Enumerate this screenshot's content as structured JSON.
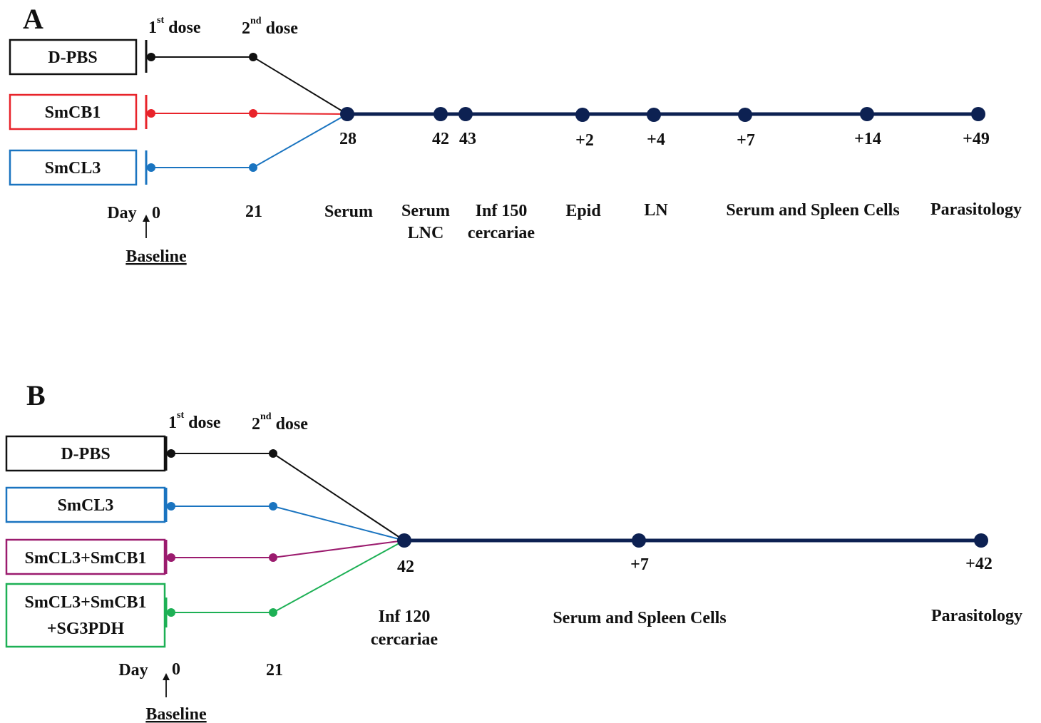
{
  "colors": {
    "dpbs": "#111111",
    "smcb1": "#e8232a",
    "smcl3": "#1a74c0",
    "smcl3_smcb1": "#9b1b6e",
    "smcl3_smcb1_sg3pdh": "#1db055",
    "timeline": "#0d2152"
  },
  "panelA": {
    "letter": "A",
    "dose1": {
      "num": "1",
      "sup": "st",
      "word": "dose"
    },
    "dose2": {
      "num": "2",
      "sup": "nd",
      "word": "dose"
    },
    "groups": [
      {
        "name": "D-PBS",
        "color_key": "dpbs"
      },
      {
        "name": "SmCB1",
        "color_key": "smcb1"
      },
      {
        "name": "SmCL3",
        "color_key": "smcl3"
      }
    ],
    "day_label": "Day",
    "day0": "0",
    "day21": "21",
    "baseline": "Baseline",
    "timepoints": [
      {
        "day": "28",
        "event": [
          "Serum"
        ]
      },
      {
        "day": "42",
        "event": [
          "Serum",
          "LNC"
        ]
      },
      {
        "day": "43",
        "event": [
          "Inf 150",
          "cercariae"
        ]
      },
      {
        "day": "+2",
        "event": [
          "Epid"
        ]
      },
      {
        "day": "+4",
        "event": [
          "LN"
        ]
      },
      {
        "day": "+7",
        "event": [
          "Serum and Spleen Cells"
        ]
      },
      {
        "day": "+14",
        "event": []
      },
      {
        "day": "+49",
        "event": [
          "Parasitology"
        ]
      }
    ]
  },
  "panelB": {
    "letter": "B",
    "dose1": {
      "num": "1",
      "sup": "st",
      "word": "dose"
    },
    "dose2": {
      "num": "2",
      "sup": "nd",
      "word": "dose"
    },
    "groups": [
      {
        "name": [
          "D-PBS"
        ],
        "color_key": "dpbs"
      },
      {
        "name": [
          "SmCL3"
        ],
        "color_key": "smcl3"
      },
      {
        "name": [
          "SmCL3+SmCB1"
        ],
        "color_key": "smcl3_smcb1"
      },
      {
        "name": [
          "SmCL3+SmCB1",
          "+SG3PDH"
        ],
        "color_key": "smcl3_smcb1_sg3pdh"
      }
    ],
    "day_label": "Day",
    "day0": "0",
    "day21": "21",
    "baseline": "Baseline",
    "timepoints": [
      {
        "day": "42",
        "event": [
          "Inf 120",
          "cercariae"
        ]
      },
      {
        "day": "+7",
        "event": [
          "Serum and Spleen Cells"
        ]
      },
      {
        "day": "+42",
        "event": [
          "Parasitology"
        ]
      }
    ]
  }
}
